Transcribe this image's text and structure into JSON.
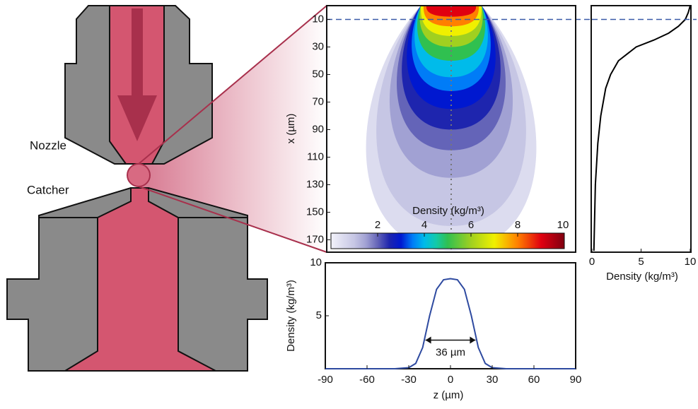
{
  "labels": {
    "nozzle": "Nozzle",
    "catcher": "Catcher"
  },
  "chart_data": [
    {
      "type": "contour",
      "ylabel": "x (µm)",
      "xlim": [
        -90,
        90
      ],
      "ylim": [
        0,
        179
      ],
      "yticks": [
        10,
        30,
        50,
        70,
        90,
        110,
        130,
        150,
        170
      ],
      "levels": [
        0.5,
        1,
        1.5,
        2,
        2.5,
        3,
        3.5,
        4,
        5,
        6,
        7,
        8,
        9
      ],
      "half_widths": [
        78,
        68,
        55,
        48,
        43,
        38,
        33,
        30,
        27,
        24,
        22,
        20,
        18
      ],
      "depths": [
        178,
        160,
        125,
        105,
        90,
        75,
        62,
        52,
        40,
        30,
        22,
        15,
        8
      ],
      "colorbar": {
        "title": "Density (kg/m³)",
        "lim": [
          0,
          10
        ],
        "ticks": [
          2,
          4,
          6,
          8,
          10
        ]
      },
      "hline": 10,
      "vline": 0
    },
    {
      "type": "profile",
      "xlabel": "Density (kg/m³)",
      "xlim": [
        0,
        10
      ],
      "xticks": [
        0,
        5,
        10
      ],
      "ylim": [
        0,
        179
      ],
      "hline": 10,
      "color": "#000000",
      "y": [
        0,
        5,
        10,
        15,
        20,
        25,
        30,
        40,
        50,
        60,
        80,
        100,
        130,
        178
      ],
      "values": [
        10,
        9.8,
        9.5,
        8.8,
        7.8,
        6.3,
        4.5,
        2.7,
        1.9,
        1.4,
        0.9,
        0.6,
        0.35,
        0.2
      ]
    },
    {
      "type": "line",
      "xlabel": "z (µm)",
      "ylabel": "Density (kg/m³)",
      "xlim": [
        -90,
        90
      ],
      "xticks": [
        -90,
        -60,
        -30,
        0,
        30,
        60,
        90
      ],
      "ylim": [
        0,
        10
      ],
      "yticks": [
        5,
        10
      ],
      "color": "#2e4aa0",
      "x": [
        -90,
        -40,
        -30,
        -25,
        -20,
        -15,
        -10,
        -5,
        0,
        5,
        10,
        15,
        20,
        25,
        30,
        40,
        90
      ],
      "values": [
        0,
        0,
        0.1,
        0.5,
        2,
        5,
        7.5,
        8.4,
        8.5,
        8.4,
        7.5,
        5,
        2,
        0.5,
        0.1,
        0,
        0
      ],
      "annotation": {
        "text": "36 µm",
        "from": -18,
        "to": 18,
        "y": 2.7
      }
    }
  ]
}
